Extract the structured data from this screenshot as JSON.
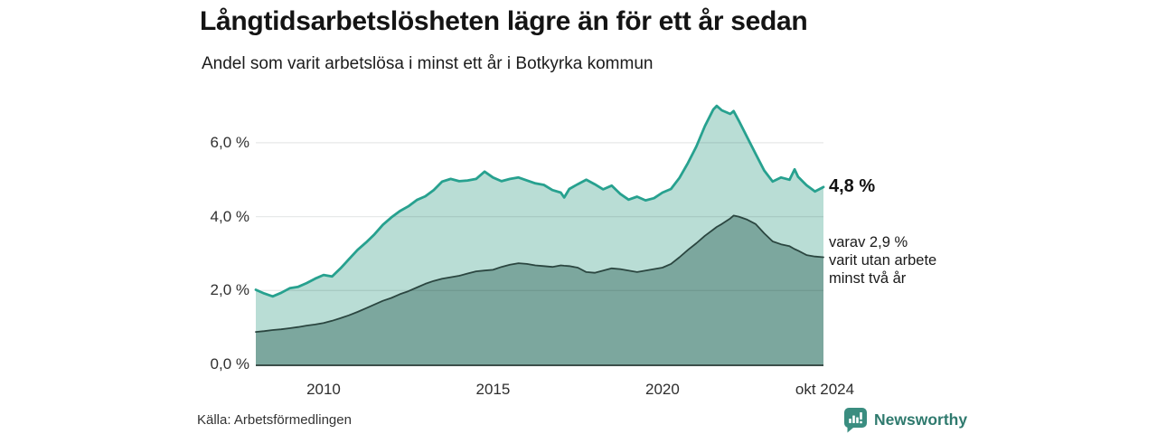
{
  "source": "Källa: Arbetsförmedlingen",
  "branding": {
    "name": "Newsworthy",
    "icon": "newsworthy-bubble-bar-chart-icon",
    "icon_bg": "#3a8d80",
    "text_color": "#2f7a6e"
  },
  "annotations": {
    "latest_total": {
      "label": "4,8 %"
    },
    "latest_two_years": {
      "lines": [
        "varav 2,9 %",
        "varit utan arbete",
        "minst två år"
      ]
    }
  },
  "chart_data": {
    "type": "area",
    "title": "Långtidsarbetslösheten lägre än för ett år sedan",
    "subtitle": "Andel som varit arbetslösa i minst ett år i Botkyrka kommun",
    "xlabel": "",
    "ylabel": "",
    "xlim": [
      2008,
      2024.83
    ],
    "ylim": [
      0,
      7.2
    ],
    "grid": true,
    "legend": "none",
    "gridline_color": "rgba(20,40,35,0.10)",
    "baseline_color": "#3c4f4a",
    "x": [
      2008,
      2008.25,
      2008.5,
      2008.75,
      2009,
      2009.25,
      2009.5,
      2009.75,
      2010,
      2010.25,
      2010.5,
      2010.75,
      2011,
      2011.25,
      2011.5,
      2011.75,
      2012,
      2012.25,
      2012.5,
      2012.75,
      2013,
      2013.25,
      2013.5,
      2013.75,
      2014,
      2014.25,
      2014.5,
      2014.75,
      2015,
      2015.25,
      2015.5,
      2015.75,
      2016,
      2016.25,
      2016.5,
      2016.75,
      2017,
      2017.1,
      2017.25,
      2017.5,
      2017.75,
      2018,
      2018.25,
      2018.5,
      2018.75,
      2019,
      2019.25,
      2019.5,
      2019.75,
      2020,
      2020.25,
      2020.5,
      2020.75,
      2021,
      2021.25,
      2021.5,
      2021.6,
      2021.75,
      2022,
      2022.1,
      2022.25,
      2022.5,
      2022.75,
      2023,
      2023.25,
      2023.5,
      2023.75,
      2023.9,
      2024,
      2024.25,
      2024.5,
      2024.75
    ],
    "series": [
      {
        "name": "Andel som varit arbetslösa i minst ett år",
        "color": "#27a18f",
        "fill": "#b9ddd5",
        "end_label": "4,8 %",
        "values": [
          2.02,
          1.92,
          1.84,
          1.94,
          2.06,
          2.1,
          2.2,
          2.32,
          2.42,
          2.38,
          2.6,
          2.85,
          3.1,
          3.3,
          3.52,
          3.78,
          3.98,
          4.15,
          4.28,
          4.45,
          4.55,
          4.72,
          4.95,
          5.02,
          4.96,
          4.98,
          5.02,
          5.22,
          5.06,
          4.96,
          5.02,
          5.06,
          4.98,
          4.9,
          4.86,
          4.72,
          4.65,
          4.52,
          4.75,
          4.88,
          5.0,
          4.88,
          4.74,
          4.84,
          4.62,
          4.46,
          4.54,
          4.44,
          4.5,
          4.65,
          4.75,
          5.05,
          5.45,
          5.9,
          6.45,
          6.9,
          7.0,
          6.88,
          6.78,
          6.86,
          6.6,
          6.15,
          5.7,
          5.25,
          4.95,
          5.06,
          5.0,
          5.28,
          5.08,
          4.85,
          4.68,
          4.8
        ]
      },
      {
        "name": "varav utan arbete minst två år",
        "color": "#2b4640",
        "fill": "#7ca79e",
        "end_label": "2,9 %",
        "values": [
          0.88,
          0.9,
          0.93,
          0.95,
          0.98,
          1.01,
          1.05,
          1.08,
          1.12,
          1.18,
          1.25,
          1.33,
          1.42,
          1.52,
          1.62,
          1.72,
          1.8,
          1.9,
          1.98,
          2.08,
          2.18,
          2.26,
          2.32,
          2.36,
          2.4,
          2.46,
          2.52,
          2.54,
          2.56,
          2.64,
          2.7,
          2.74,
          2.72,
          2.68,
          2.66,
          2.64,
          2.68,
          2.67,
          2.66,
          2.62,
          2.5,
          2.48,
          2.54,
          2.6,
          2.58,
          2.54,
          2.5,
          2.54,
          2.58,
          2.62,
          2.72,
          2.9,
          3.1,
          3.28,
          3.48,
          3.65,
          3.72,
          3.8,
          3.95,
          4.03,
          4.0,
          3.92,
          3.8,
          3.55,
          3.33,
          3.25,
          3.2,
          3.12,
          3.08,
          2.96,
          2.92,
          2.9
        ]
      }
    ],
    "yticks": [
      {
        "value": 0,
        "label": "0,0 %"
      },
      {
        "value": 2,
        "label": "2,0 %"
      },
      {
        "value": 4,
        "label": "4,0 %"
      },
      {
        "value": 6,
        "label": "6,0 %"
      }
    ],
    "xticks": [
      {
        "value": 2010,
        "label": "2010"
      },
      {
        "value": 2015,
        "label": "2015"
      },
      {
        "value": 2020,
        "label": "2020"
      },
      {
        "value": 2024.79,
        "label": "okt 2024"
      }
    ]
  }
}
